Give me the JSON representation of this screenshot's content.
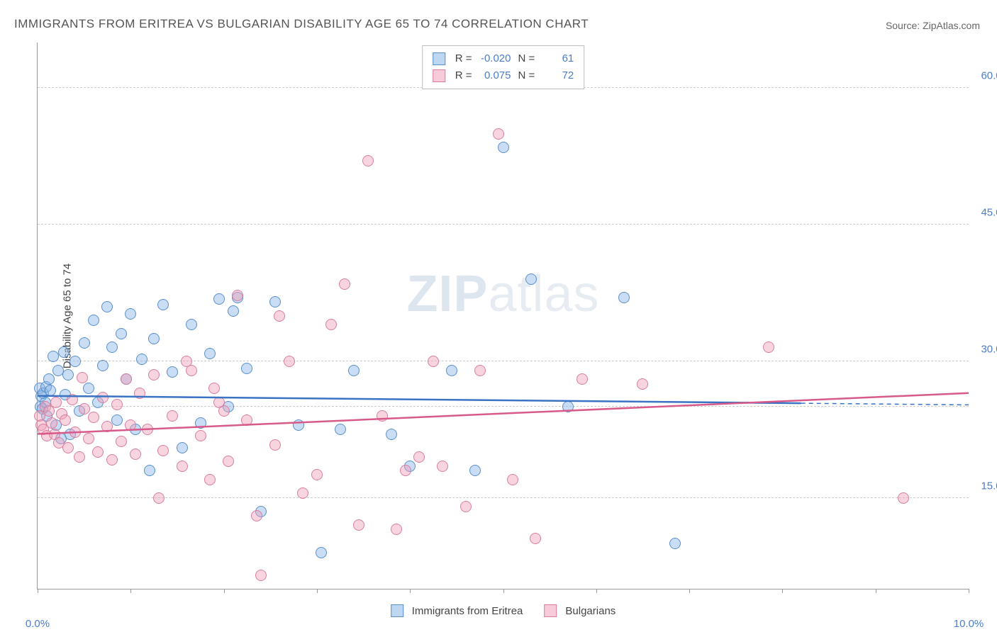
{
  "title": "IMMIGRANTS FROM ERITREA VS BULGARIAN DISABILITY AGE 65 TO 74 CORRELATION CHART",
  "source_label": "Source: ",
  "source_value": "ZipAtlas.com",
  "watermark_a": "ZIP",
  "watermark_b": "atlas",
  "chart": {
    "type": "scatter",
    "y_axis_title": "Disability Age 65 to 74",
    "xlim": [
      0,
      10
    ],
    "ylim": [
      5,
      65
    ],
    "x_ticks": [
      0,
      1,
      2,
      3,
      4,
      5,
      6,
      7,
      8,
      9,
      10
    ],
    "x_tick_labels_shown": {
      "0": "0.0%",
      "10": "10.0%"
    },
    "y_gridlines": [
      15,
      25,
      30,
      45,
      60
    ],
    "y_tick_labels": {
      "15": "15.0%",
      "30": "30.0%",
      "45": "45.0%",
      "60": "60.0%"
    },
    "dashed_gridlines": [
      15,
      25,
      45,
      60
    ],
    "point_radius": 8,
    "background_color": "#ffffff",
    "grid_color": "#cccccc",
    "axis_color": "#999999",
    "series": [
      {
        "name": "Immigrants from Eritrea",
        "color_fill": "rgba(135,180,230,0.45)",
        "color_stroke": "#5a8fc8",
        "R": "-0.020",
        "N": "61",
        "trend": {
          "y_at_x0": 26.2,
          "y_at_x10": 25.2,
          "x_draw_end": 8.2
        },
        "points": [
          [
            0.02,
            27
          ],
          [
            0.03,
            25
          ],
          [
            0.04,
            26.2
          ],
          [
            0.05,
            24.8
          ],
          [
            0.06,
            26.5
          ],
          [
            0.08,
            25.5
          ],
          [
            0.09,
            27.2
          ],
          [
            0.1,
            24
          ],
          [
            0.12,
            28
          ],
          [
            0.14,
            26.8
          ],
          [
            0.17,
            30.5
          ],
          [
            0.2,
            23
          ],
          [
            0.22,
            29
          ],
          [
            0.25,
            21.5
          ],
          [
            0.28,
            31
          ],
          [
            0.3,
            26.3
          ],
          [
            0.33,
            28.5
          ],
          [
            0.35,
            22
          ],
          [
            0.4,
            30
          ],
          [
            0.45,
            24.5
          ],
          [
            0.5,
            32
          ],
          [
            0.55,
            27
          ],
          [
            0.6,
            34.5
          ],
          [
            0.65,
            25.5
          ],
          [
            0.7,
            29.5
          ],
          [
            0.75,
            36
          ],
          [
            0.8,
            31.5
          ],
          [
            0.85,
            23.5
          ],
          [
            0.9,
            33
          ],
          [
            0.95,
            28
          ],
          [
            1.0,
            35.2
          ],
          [
            1.05,
            22.5
          ],
          [
            1.12,
            30.2
          ],
          [
            1.2,
            18
          ],
          [
            1.25,
            32.5
          ],
          [
            1.35,
            36.2
          ],
          [
            1.45,
            28.8
          ],
          [
            1.55,
            20.5
          ],
          [
            1.65,
            34
          ],
          [
            1.75,
            23.2
          ],
          [
            1.85,
            30.8
          ],
          [
            1.95,
            36.8
          ],
          [
            2.05,
            25
          ],
          [
            2.1,
            35.5
          ],
          [
            2.15,
            37
          ],
          [
            2.25,
            29.2
          ],
          [
            2.4,
            13.5
          ],
          [
            2.55,
            36.5
          ],
          [
            2.8,
            23
          ],
          [
            3.05,
            9
          ],
          [
            3.25,
            22.5
          ],
          [
            3.4,
            29
          ],
          [
            3.8,
            22
          ],
          [
            4.0,
            18.5
          ],
          [
            4.45,
            29
          ],
          [
            4.7,
            18
          ],
          [
            5.0,
            53.5
          ],
          [
            5.3,
            39
          ],
          [
            5.7,
            25
          ],
          [
            6.3,
            37
          ],
          [
            6.85,
            10
          ]
        ]
      },
      {
        "name": "Bulgarians",
        "color_fill": "rgba(240,160,185,0.45)",
        "color_stroke": "#d77ea0",
        "R": "0.075",
        "N": "72",
        "trend": {
          "y_at_x0": 22.0,
          "y_at_x10": 26.5,
          "x_draw_end": 10
        },
        "points": [
          [
            0.02,
            24
          ],
          [
            0.04,
            23
          ],
          [
            0.06,
            22.5
          ],
          [
            0.08,
            25
          ],
          [
            0.1,
            21.8
          ],
          [
            0.12,
            24.5
          ],
          [
            0.15,
            23.2
          ],
          [
            0.18,
            22
          ],
          [
            0.2,
            25.5
          ],
          [
            0.23,
            21
          ],
          [
            0.26,
            24.2
          ],
          [
            0.3,
            23.5
          ],
          [
            0.33,
            20.5
          ],
          [
            0.37,
            25.8
          ],
          [
            0.4,
            22.2
          ],
          [
            0.45,
            19.5
          ],
          [
            0.5,
            24.8
          ],
          [
            0.55,
            21.5
          ],
          [
            0.6,
            23.8
          ],
          [
            0.65,
            20
          ],
          [
            0.7,
            26
          ],
          [
            0.75,
            22.8
          ],
          [
            0.8,
            19.2
          ],
          [
            0.85,
            25.2
          ],
          [
            0.9,
            21.2
          ],
          [
            0.95,
            28
          ],
          [
            1.0,
            23
          ],
          [
            1.05,
            19.8
          ],
          [
            1.1,
            26.5
          ],
          [
            1.18,
            22.5
          ],
          [
            1.25,
            28.5
          ],
          [
            1.35,
            20.2
          ],
          [
            1.45,
            24
          ],
          [
            1.55,
            18.5
          ],
          [
            1.65,
            29
          ],
          [
            1.75,
            21.8
          ],
          [
            1.85,
            17
          ],
          [
            1.95,
            25.5
          ],
          [
            2.05,
            19
          ],
          [
            2.15,
            37.2
          ],
          [
            2.25,
            23.5
          ],
          [
            2.4,
            6.5
          ],
          [
            2.35,
            13
          ],
          [
            2.55,
            20.8
          ],
          [
            2.7,
            30
          ],
          [
            2.85,
            15.5
          ],
          [
            3.0,
            17.5
          ],
          [
            3.15,
            34
          ],
          [
            3.3,
            38.5
          ],
          [
            3.45,
            12
          ],
          [
            3.55,
            52
          ],
          [
            3.7,
            24
          ],
          [
            3.85,
            11.5
          ],
          [
            3.95,
            18
          ],
          [
            4.1,
            19.5
          ],
          [
            4.25,
            30
          ],
          [
            4.35,
            18.5
          ],
          [
            4.6,
            14
          ],
          [
            4.75,
            29
          ],
          [
            4.95,
            55
          ],
          [
            5.1,
            17
          ],
          [
            5.35,
            10.5
          ],
          [
            5.85,
            28
          ],
          [
            6.5,
            27.5
          ],
          [
            7.85,
            31.5
          ],
          [
            9.3,
            15
          ],
          [
            0.48,
            28.2
          ],
          [
            1.3,
            15
          ],
          [
            1.9,
            27
          ],
          [
            2.6,
            35
          ],
          [
            1.6,
            30
          ],
          [
            2.0,
            24.5
          ]
        ]
      }
    ],
    "legend_bottom": [
      {
        "swatch": "blue",
        "label": "Immigrants from Eritrea"
      },
      {
        "swatch": "pink",
        "label": "Bulgarians"
      }
    ],
    "legend_top_label_R": "R =",
    "legend_top_label_N": "N ="
  }
}
